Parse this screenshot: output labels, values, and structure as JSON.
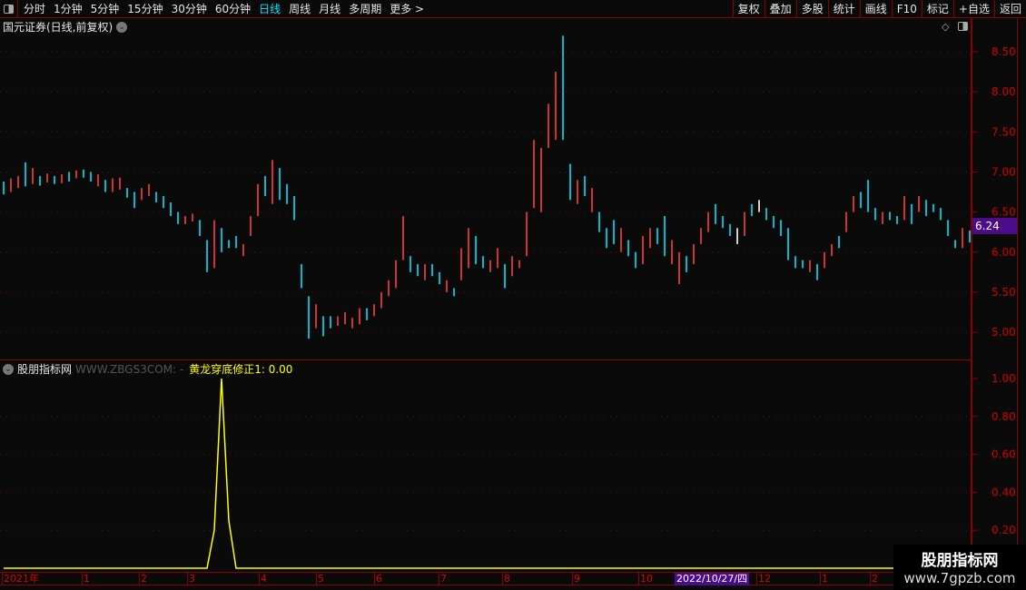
{
  "toolbar": {
    "periods": [
      "分时",
      "1分钟",
      "5分钟",
      "15分钟",
      "30分钟",
      "60分钟",
      "日线",
      "周线",
      "月线",
      "多周期",
      "更多 >"
    ],
    "active": "日线",
    "right_buttons": [
      "复权",
      "叠加",
      "多股",
      "统计",
      "画线",
      "F10",
      "标记",
      "+自选",
      "返回"
    ]
  },
  "main": {
    "title": "国元证券(日线,前复权)",
    "last_price": "6.24"
  },
  "indicator": {
    "name": "股朋指标网",
    "source": "WWW.ZBGS3COM: -",
    "line_label": "黄龙穿底修正1: 0.00"
  },
  "time_axis": [
    {
      "label": "2021年"
    },
    {
      "label": "1"
    },
    {
      "label": "2"
    },
    {
      "label": "3"
    },
    {
      "label": "4"
    },
    {
      "label": "5"
    },
    {
      "label": "6"
    },
    {
      "label": "7"
    },
    {
      "label": "8"
    },
    {
      "label": "9"
    },
    {
      "label": "10"
    },
    {
      "label": "2022/10/27/四",
      "highlight": true
    },
    {
      "label": "12"
    },
    {
      "label": "1"
    },
    {
      "label": "2"
    }
  ],
  "watermark": {
    "line1": "股朋指标网",
    "line2": "www.7gpzb.com"
  },
  "colors": {
    "up": "#ff3b3b",
    "down": "#00e5ff",
    "flat": "#ffffff",
    "indicator": "#ffff00",
    "grid": "#8a0000",
    "axis_text": "#d00000",
    "highlight": "#4b0c8a"
  },
  "chart_data": [
    {
      "type": "candlestick",
      "y_ticks": [
        "8.50",
        "8.00",
        "7.50",
        "7.00",
        "6.50",
        "6.00",
        "5.50",
        "5.00"
      ],
      "ylim": [
        4.9,
        8.75
      ],
      "grid": true,
      "bars_low_high_dir": [
        [
          6.72,
          6.88,
          "d"
        ],
        [
          6.75,
          6.92,
          "u"
        ],
        [
          6.8,
          6.95,
          "u"
        ],
        [
          6.82,
          7.12,
          "d"
        ],
        [
          6.85,
          7.05,
          "u"
        ],
        [
          6.83,
          6.95,
          "d"
        ],
        [
          6.87,
          6.98,
          "u"
        ],
        [
          6.85,
          6.95,
          "d"
        ],
        [
          6.86,
          6.97,
          "u"
        ],
        [
          6.88,
          7.0,
          "d"
        ],
        [
          6.92,
          7.02,
          "u"
        ],
        [
          6.93,
          7.03,
          "d"
        ],
        [
          6.88,
          7.0,
          "d"
        ],
        [
          6.82,
          6.97,
          "u"
        ],
        [
          6.75,
          6.9,
          "d"
        ],
        [
          6.75,
          6.92,
          "u"
        ],
        [
          6.78,
          6.93,
          "u"
        ],
        [
          6.68,
          6.8,
          "d"
        ],
        [
          6.55,
          6.75,
          "d"
        ],
        [
          6.65,
          6.8,
          "u"
        ],
        [
          6.7,
          6.85,
          "u"
        ],
        [
          6.62,
          6.75,
          "d"
        ],
        [
          6.55,
          6.7,
          "d"
        ],
        [
          6.45,
          6.62,
          "d"
        ],
        [
          6.35,
          6.5,
          "d"
        ],
        [
          6.35,
          6.45,
          "u"
        ],
        [
          6.38,
          6.48,
          "u"
        ],
        [
          6.2,
          6.4,
          "d"
        ],
        [
          5.75,
          6.15,
          "d"
        ],
        [
          5.8,
          6.4,
          "u"
        ],
        [
          6.0,
          6.3,
          "d"
        ],
        [
          6.05,
          6.15,
          "d"
        ],
        [
          6.05,
          6.2,
          "d"
        ],
        [
          5.95,
          6.1,
          "u"
        ],
        [
          6.2,
          6.45,
          "u"
        ],
        [
          6.45,
          6.85,
          "u"
        ],
        [
          6.7,
          6.95,
          "d"
        ],
        [
          6.6,
          7.15,
          "u"
        ],
        [
          6.65,
          7.05,
          "d"
        ],
        [
          6.6,
          6.85,
          "d"
        ],
        [
          6.4,
          6.7,
          "d"
        ],
        [
          5.55,
          5.85,
          "d"
        ],
        [
          4.92,
          5.45,
          "d"
        ],
        [
          5.05,
          5.35,
          "u"
        ],
        [
          4.95,
          5.2,
          "d"
        ],
        [
          5.05,
          5.2,
          "d"
        ],
        [
          5.08,
          5.2,
          "u"
        ],
        [
          5.1,
          5.25,
          "u"
        ],
        [
          5.05,
          5.18,
          "u"
        ],
        [
          5.1,
          5.3,
          "u"
        ],
        [
          5.15,
          5.3,
          "d"
        ],
        [
          5.2,
          5.35,
          "u"
        ],
        [
          5.3,
          5.5,
          "u"
        ],
        [
          5.45,
          5.65,
          "u"
        ],
        [
          5.55,
          5.9,
          "u"
        ],
        [
          5.9,
          6.45,
          "u"
        ],
        [
          5.75,
          5.95,
          "d"
        ],
        [
          5.7,
          5.85,
          "d"
        ],
        [
          5.65,
          5.85,
          "u"
        ],
        [
          5.7,
          5.85,
          "d"
        ],
        [
          5.6,
          5.75,
          "d"
        ],
        [
          5.5,
          5.65,
          "u"
        ],
        [
          5.45,
          5.55,
          "d"
        ],
        [
          5.65,
          6.05,
          "u"
        ],
        [
          5.8,
          6.3,
          "u"
        ],
        [
          5.85,
          6.2,
          "d"
        ],
        [
          5.8,
          5.95,
          "d"
        ],
        [
          5.75,
          5.9,
          "u"
        ],
        [
          5.8,
          6.05,
          "u"
        ],
        [
          5.55,
          5.85,
          "d"
        ],
        [
          5.7,
          5.95,
          "u"
        ],
        [
          5.8,
          5.9,
          "u"
        ],
        [
          5.95,
          6.5,
          "u"
        ],
        [
          6.55,
          7.4,
          "u"
        ],
        [
          6.5,
          7.3,
          "u"
        ],
        [
          7.3,
          7.85,
          "u"
        ],
        [
          7.4,
          8.25,
          "u"
        ],
        [
          7.4,
          8.7,
          "d"
        ],
        [
          6.65,
          7.1,
          "d"
        ],
        [
          6.6,
          6.9,
          "u"
        ],
        [
          6.7,
          6.95,
          "d"
        ],
        [
          6.5,
          6.8,
          "u"
        ],
        [
          6.25,
          6.5,
          "d"
        ],
        [
          6.05,
          6.3,
          "d"
        ],
        [
          6.1,
          6.4,
          "d"
        ],
        [
          6.0,
          6.3,
          "u"
        ],
        [
          5.95,
          6.15,
          "d"
        ],
        [
          5.8,
          6.0,
          "d"
        ],
        [
          5.85,
          6.2,
          "u"
        ],
        [
          6.05,
          6.3,
          "u"
        ],
        [
          6.1,
          6.3,
          "d"
        ],
        [
          5.95,
          6.45,
          "d"
        ],
        [
          5.85,
          6.15,
          "u"
        ],
        [
          5.6,
          6.0,
          "u"
        ],
        [
          5.75,
          5.95,
          "d"
        ],
        [
          5.85,
          6.1,
          "u"
        ],
        [
          6.1,
          6.3,
          "u"
        ],
        [
          6.25,
          6.5,
          "u"
        ],
        [
          6.35,
          6.6,
          "d"
        ],
        [
          6.3,
          6.45,
          "d"
        ],
        [
          6.2,
          6.35,
          "d"
        ],
        [
          6.1,
          6.3,
          "f"
        ],
        [
          6.2,
          6.5,
          "u"
        ],
        [
          6.45,
          6.6,
          "d"
        ],
        [
          6.5,
          6.65,
          "f"
        ],
        [
          6.4,
          6.55,
          "d"
        ],
        [
          6.3,
          6.45,
          "d"
        ],
        [
          6.2,
          6.4,
          "d"
        ],
        [
          5.9,
          6.3,
          "d"
        ],
        [
          5.8,
          5.95,
          "d"
        ],
        [
          5.8,
          5.9,
          "d"
        ],
        [
          5.75,
          5.9,
          "u"
        ],
        [
          5.65,
          5.85,
          "d"
        ],
        [
          5.8,
          6.0,
          "u"
        ],
        [
          5.95,
          6.1,
          "u"
        ],
        [
          6.05,
          6.2,
          "d"
        ],
        [
          6.25,
          6.5,
          "u"
        ],
        [
          6.5,
          6.7,
          "u"
        ],
        [
          6.55,
          6.75,
          "d"
        ],
        [
          6.5,
          6.9,
          "d"
        ],
        [
          6.4,
          6.55,
          "d"
        ],
        [
          6.35,
          6.5,
          "u"
        ],
        [
          6.4,
          6.5,
          "d"
        ],
        [
          6.35,
          6.45,
          "d"
        ],
        [
          6.4,
          6.7,
          "u"
        ],
        [
          6.35,
          6.6,
          "d"
        ],
        [
          6.5,
          6.7,
          "u"
        ],
        [
          6.45,
          6.65,
          "d"
        ],
        [
          6.5,
          6.6,
          "d"
        ],
        [
          6.4,
          6.55,
          "d"
        ],
        [
          6.2,
          6.4,
          "d"
        ],
        [
          6.05,
          6.15,
          "d"
        ],
        [
          6.05,
          6.3,
          "u"
        ],
        [
          6.12,
          6.27,
          "d"
        ]
      ]
    },
    {
      "type": "line",
      "name": "黄龙穿底修正1",
      "y_ticks": [
        "1.00",
        "0.80",
        "0.60",
        "0.40",
        "0.20"
      ],
      "ylim": [
        0,
        1
      ],
      "grid": true,
      "values": [
        0,
        0,
        0,
        0,
        0,
        0,
        0,
        0,
        0,
        0,
        0,
        0,
        0,
        0,
        0,
        0,
        0,
        0,
        0,
        0,
        0,
        0,
        0,
        0,
        0,
        0,
        0,
        0,
        0,
        0.2,
        1.0,
        0.25,
        0,
        0,
        0,
        0,
        0,
        0,
        0,
        0,
        0,
        0,
        0,
        0,
        0,
        0,
        0,
        0,
        0,
        0,
        0,
        0,
        0,
        0,
        0,
        0,
        0,
        0,
        0,
        0,
        0,
        0,
        0,
        0,
        0,
        0,
        0,
        0,
        0,
        0,
        0,
        0,
        0,
        0,
        0,
        0,
        0,
        0,
        0,
        0,
        0,
        0,
        0,
        0,
        0,
        0,
        0,
        0,
        0,
        0,
        0,
        0,
        0,
        0,
        0,
        0,
        0,
        0,
        0,
        0,
        0,
        0,
        0,
        0,
        0,
        0,
        0,
        0,
        0,
        0,
        0,
        0,
        0,
        0,
        0,
        0,
        0,
        0,
        0,
        0,
        0,
        0,
        0,
        0,
        0,
        0,
        0,
        0,
        0,
        0,
        0,
        0,
        0,
        0
      ]
    }
  ]
}
